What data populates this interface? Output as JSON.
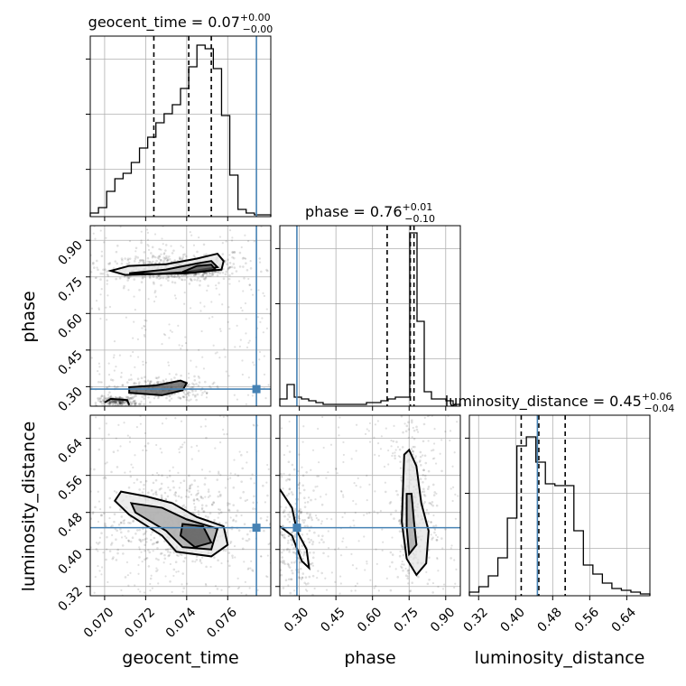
{
  "colors": {
    "truth": "#4682b4",
    "contour": "#000000",
    "grid": "#b0b0b0"
  },
  "chart_data": {
    "type": "corner",
    "parameters": [
      "geocent_time",
      "phase",
      "luminosity_distance"
    ],
    "truths": {
      "geocent_time": 0.0774,
      "phase": 0.29,
      "luminosity_distance": 0.447
    },
    "ranges": {
      "geocent_time": [
        0.0693,
        0.0781
      ],
      "phase": [
        0.22,
        0.96
      ],
      "luminosity_distance": [
        0.3,
        0.69
      ]
    },
    "ticks": {
      "geocent_time": [
        "0.070",
        "0.072",
        "0.074",
        "0.076"
      ],
      "phase": [
        "0.30",
        "0.45",
        "0.60",
        "0.75",
        "0.90"
      ],
      "luminosity_distance": [
        "0.32",
        "0.40",
        "0.48",
        "0.56",
        "0.64"
      ]
    },
    "titles": [
      {
        "param": "geocent_time",
        "label": "geocent_time = 0.07",
        "sup": "+0.00",
        "sub": "−0.00"
      },
      {
        "param": "phase",
        "label": "phase = 0.76",
        "sup": "+0.01",
        "sub": "−0.10"
      },
      {
        "param": "luminosity_distance",
        "label": "luminosity_distance = 0.45",
        "sup": "+0.06",
        "sub": "−0.04"
      }
    ],
    "quantiles": {
      "geocent_time": [
        0.0724,
        0.0741,
        0.0752
      ],
      "phase": [
        0.66,
        0.755,
        0.77
      ],
      "luminosity_distance": [
        0.412,
        0.45,
        0.507
      ]
    },
    "histograms": {
      "geocent_time": [
        0.02,
        0.05,
        0.14,
        0.21,
        0.24,
        0.3,
        0.38,
        0.44,
        0.52,
        0.57,
        0.62,
        0.71,
        0.83,
        0.95,
        0.93,
        0.82,
        0.56,
        0.23,
        0.04,
        0.02,
        0.01,
        0.01
      ],
      "phase": [
        0.04,
        0.12,
        0.05,
        0.04,
        0.03,
        0.02,
        0.01,
        0.01,
        0.01,
        0.01,
        0.01,
        0.01,
        0.02,
        0.02,
        0.03,
        0.04,
        0.05,
        0.05,
        0.96,
        0.47,
        0.08,
        0.04,
        0.04,
        0.03,
        0.01
      ],
      "luminosity_distance": [
        0.02,
        0.05,
        0.11,
        0.21,
        0.43,
        0.83,
        0.88,
        0.74,
        0.62,
        0.61,
        0.61,
        0.36,
        0.17,
        0.12,
        0.07,
        0.04,
        0.03,
        0.02,
        0.01
      ]
    },
    "contours": {
      "phase_vs_geocent_time": [
        [
          [
            0.0703,
            0.775
          ],
          [
            0.0712,
            0.795
          ],
          [
            0.073,
            0.802
          ],
          [
            0.0745,
            0.825
          ],
          [
            0.0755,
            0.845
          ],
          [
            0.0758,
            0.815
          ],
          [
            0.0757,
            0.78
          ],
          [
            0.074,
            0.765
          ],
          [
            0.071,
            0.758
          ],
          [
            0.0703,
            0.775
          ]
        ],
        [
          [
            0.0712,
            0.765
          ],
          [
            0.073,
            0.78
          ],
          [
            0.0745,
            0.805
          ],
          [
            0.0752,
            0.815
          ],
          [
            0.0755,
            0.79
          ],
          [
            0.074,
            0.77
          ],
          [
            0.0725,
            0.762
          ],
          [
            0.0712,
            0.765
          ]
        ],
        [
          [
            0.0738,
            0.77
          ],
          [
            0.0745,
            0.795
          ],
          [
            0.0752,
            0.8
          ],
          [
            0.0754,
            0.78
          ],
          [
            0.0744,
            0.768
          ],
          [
            0.0738,
            0.77
          ]
        ],
        [
          [
            0.0728,
            0.265
          ],
          [
            0.0738,
            0.285
          ],
          [
            0.074,
            0.315
          ],
          [
            0.0737,
            0.325
          ],
          [
            0.0725,
            0.305
          ],
          [
            0.0712,
            0.298
          ],
          [
            0.0712,
            0.275
          ],
          [
            0.0728,
            0.265
          ]
        ],
        [
          [
            0.07,
            0.235
          ],
          [
            0.0703,
            0.25
          ],
          [
            0.0711,
            0.245
          ],
          [
            0.0712,
            0.225
          ]
        ]
      ],
      "luminosity_distance_vs_geocent_time": [
        [
          [
            0.0708,
            0.525
          ],
          [
            0.072,
            0.515
          ],
          [
            0.0733,
            0.5
          ],
          [
            0.0745,
            0.47
          ],
          [
            0.0758,
            0.45
          ],
          [
            0.076,
            0.41
          ],
          [
            0.0752,
            0.385
          ],
          [
            0.0735,
            0.395
          ],
          [
            0.0728,
            0.43
          ],
          [
            0.0712,
            0.475
          ],
          [
            0.0705,
            0.505
          ],
          [
            0.0708,
            0.525
          ]
        ],
        [
          [
            0.0713,
            0.5
          ],
          [
            0.0728,
            0.49
          ],
          [
            0.074,
            0.465
          ],
          [
            0.0755,
            0.445
          ],
          [
            0.0752,
            0.4
          ],
          [
            0.0738,
            0.405
          ],
          [
            0.073,
            0.44
          ],
          [
            0.0715,
            0.48
          ],
          [
            0.0713,
            0.5
          ]
        ],
        [
          [
            0.0738,
            0.455
          ],
          [
            0.0748,
            0.45
          ],
          [
            0.0752,
            0.415
          ],
          [
            0.0744,
            0.405
          ],
          [
            0.0737,
            0.43
          ],
          [
            0.0738,
            0.455
          ]
        ]
      ],
      "luminosity_distance_vs_phase": [
        [
          [
            0.73,
            0.605
          ],
          [
            0.75,
            0.615
          ],
          [
            0.78,
            0.58
          ],
          [
            0.8,
            0.5
          ],
          [
            0.83,
            0.44
          ],
          [
            0.82,
            0.37
          ],
          [
            0.78,
            0.345
          ],
          [
            0.74,
            0.38
          ],
          [
            0.72,
            0.46
          ],
          [
            0.73,
            0.605
          ]
        ],
        [
          [
            0.74,
            0.52
          ],
          [
            0.76,
            0.52
          ],
          [
            0.77,
            0.46
          ],
          [
            0.78,
            0.41
          ],
          [
            0.75,
            0.39
          ],
          [
            0.74,
            0.45
          ],
          [
            0.74,
            0.52
          ]
        ],
        [
          [
            0.22,
            0.53
          ],
          [
            0.27,
            0.49
          ],
          [
            0.29,
            0.44
          ],
          [
            0.33,
            0.4
          ],
          [
            0.34,
            0.36
          ],
          [
            0.31,
            0.375
          ],
          [
            0.27,
            0.43
          ],
          [
            0.22,
            0.45
          ]
        ]
      ]
    }
  }
}
